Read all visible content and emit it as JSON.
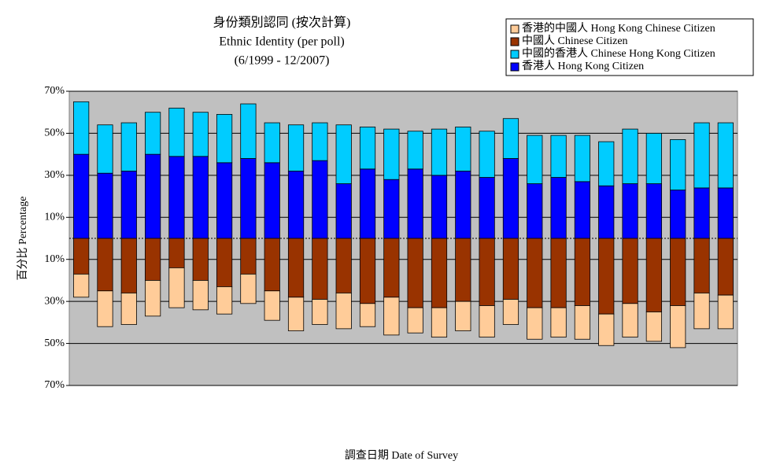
{
  "chart_data": {
    "type": "diverging_stacked_bar",
    "title": [
      "身份類別認同 (按次計算)",
      "Ethnic Identity (per poll)",
      "(6/1999 - 12/2007)"
    ],
    "xlabel": "調查日期 Date of Survey",
    "ylabel": "百分比 Percentage",
    "categories": [
      null,
      null,
      null,
      null,
      null,
      null,
      null,
      null,
      null,
      null,
      null,
      null,
      null,
      null,
      null,
      null,
      null,
      null,
      null,
      null,
      null,
      null,
      null,
      null,
      null,
      null,
      null,
      null
    ],
    "series": [
      {
        "name": "香港的中國人 Hong Kong Chinese Citizen",
        "color": "#ffcc99",
        "values": [
          -11,
          -17,
          -15,
          -17,
          -19,
          -14,
          -13,
          -14,
          -14,
          -16,
          -12,
          -17,
          -11,
          -18,
          -12,
          -14,
          -14,
          -15,
          -12,
          -15,
          -14,
          -16,
          -15,
          -16,
          -14,
          -20,
          -17,
          -16
        ]
      },
      {
        "name": "中國人 Chinese Citizen",
        "color": "#993300",
        "values": [
          -17,
          -25,
          -26,
          -20,
          -14,
          -20,
          -23,
          -17,
          -25,
          -28,
          -29,
          -26,
          -31,
          -28,
          -33,
          -33,
          -30,
          -32,
          -29,
          -33,
          -33,
          -32,
          -36,
          -31,
          -35,
          -32,
          -26,
          -27
        ]
      },
      {
        "name": "中國的香港人 Chinese Hong Kong Citizen",
        "color": "#00ccff",
        "values": [
          25,
          23,
          23,
          20,
          23,
          21,
          23,
          26,
          19,
          22,
          18,
          28,
          20,
          24,
          18,
          22,
          21,
          22,
          19,
          23,
          20,
          22,
          21,
          26,
          24,
          24,
          31,
          31
        ]
      },
      {
        "name": "香港人 Hong Kong Citizen",
        "color": "#0000ff",
        "values": [
          40,
          31,
          32,
          40,
          39,
          39,
          36,
          38,
          36,
          32,
          37,
          26,
          33,
          28,
          33,
          30,
          32,
          29,
          38,
          26,
          29,
          27,
          25,
          26,
          26,
          23,
          24,
          24
        ]
      }
    ],
    "ylim": [
      -70,
      70
    ],
    "yticks": [
      {
        "value": 70,
        "label": "70%"
      },
      {
        "value": 50,
        "label": "50%"
      },
      {
        "value": 30,
        "label": "30%"
      },
      {
        "value": 10,
        "label": "10%"
      },
      {
        "value": -10,
        "label": "10%"
      },
      {
        "value": -30,
        "label": "30%"
      },
      {
        "value": -50,
        "label": "50%"
      },
      {
        "value": -70,
        "label": "70%"
      }
    ],
    "grid": true,
    "plot_background": "#c0c0c0",
    "legend": "top-right"
  }
}
